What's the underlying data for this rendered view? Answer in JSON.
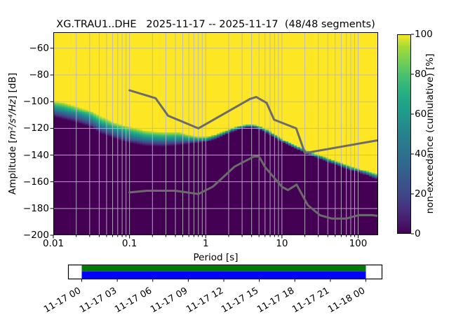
{
  "title": "XG.TRAU1..DHE   2025-11-17 -- 2025-11-17  (48/48 segments)",
  "station_id": "XG.TRAU1..DHE",
  "date_range": "2025-11-17 -- 2025-11-17",
  "segments_label": "48/48 segments",
  "axes": {
    "xlabel": "Period [s]",
    "ylabel_prefix": "Amplitude [",
    "ylabel_math": "m²/s⁴/Hz",
    "ylabel_suffix": "] [dB]",
    "x_tick_labels": [
      "0.01",
      "0.1",
      "1",
      "10",
      "100"
    ],
    "x_tick_values": [
      0.01,
      0.1,
      1,
      10,
      100
    ],
    "y_tick_labels": [
      "−200",
      "−180",
      "−160",
      "−140",
      "−120",
      "−100",
      "−80",
      "−60"
    ],
    "y_tick_values": [
      -200,
      -180,
      -160,
      -140,
      -120,
      -100,
      -80,
      -60
    ],
    "xscale": "log"
  },
  "colorbar": {
    "label": "non-exceedance (cumulative) [%]",
    "tick_labels": [
      "0",
      "20",
      "40",
      "60",
      "80",
      "100"
    ],
    "tick_values": [
      0,
      20,
      40,
      60,
      80,
      100
    ],
    "range": [
      0,
      100
    ],
    "colormap": "viridis"
  },
  "timeline": {
    "tick_labels": [
      "11-17 00",
      "11-17 03",
      "11-17 06",
      "11-17 09",
      "11-17 12",
      "11-17 15",
      "11-17 18",
      "11-17 21",
      "11-18 00"
    ],
    "coverage_top_color": "#007a00",
    "coverage_bottom_color": "#0000ff",
    "box_fill": "#ffffff",
    "box_border": "#000000"
  },
  "colors": {
    "grid": "#b8b6c2",
    "noise_model": "#6b6b6b",
    "axis": "#000000",
    "cmap_low": "#440154",
    "cmap_high": "#fde725"
  },
  "chart_data": {
    "type": "heatmap",
    "title": "XG.TRAU1..DHE   2025-11-17 -- 2025-11-17  (48/48 segments)",
    "xlabel": "Period [s]",
    "ylabel": "Amplitude [m²/s⁴/Hz] [dB]",
    "zlabel": "non-exceedance (cumulative) [%]",
    "x_range": [
      0.01,
      183
    ],
    "y_range": [
      -200,
      -48
    ],
    "z_range": [
      0,
      100
    ],
    "xscale": "log",
    "grid": true,
    "period_step_octaves": 0.125,
    "db_bin_width": 1.0,
    "cumulative_50pct_contour": {
      "periods_s": [
        0.01,
        0.014,
        0.02,
        0.03,
        0.042,
        0.06,
        0.1,
        0.16,
        0.28,
        0.45,
        0.6,
        0.8,
        1.0,
        1.3,
        1.7,
        2.2,
        2.8,
        3.5,
        4.3,
        5.0,
        6.0,
        7.5,
        9.0,
        11.0,
        14.0,
        18.0,
        23.0,
        30.0,
        40.0,
        55.0,
        75.0,
        100.0,
        140.0,
        183.0
      ],
      "db": [
        -105.5,
        -107.0,
        -109.5,
        -112.5,
        -117.5,
        -121.0,
        -125.0,
        -127.5,
        -128.3,
        -127.8,
        -128.3,
        -128.6,
        -128.2,
        -126.5,
        -124.0,
        -121.5,
        -119.3,
        -118.2,
        -118.3,
        -119.5,
        -121.5,
        -124.8,
        -127.5,
        -130.3,
        -133.2,
        -136.0,
        -138.6,
        -141.2,
        -143.8,
        -146.6,
        -149.3,
        -151.5,
        -154.3,
        -156.5
      ],
      "transition_width_db": [
        12,
        12.5,
        12,
        12,
        13,
        12,
        12.5,
        11.5,
        11,
        10,
        7,
        5,
        4,
        3.5,
        3,
        3,
        2.8,
        2.8,
        2.8,
        2.8,
        2.8,
        2.8,
        2.8,
        2.8,
        2.8,
        2.8,
        2.8,
        3,
        3,
        3,
        3.2,
        3.2,
        3.5,
        4
      ]
    },
    "noise_models": {
      "nhnm": {
        "name": "Peterson NHNM",
        "periods_s": [
          0.1,
          0.22,
          0.32,
          0.8,
          3.8,
          4.6,
          6.3,
          7.9,
          15.4,
          20.0,
          183.0
        ],
        "db": [
          -91.5,
          -97.4,
          -110.5,
          -120.0,
          -98.0,
          -96.5,
          -101.0,
          -113.5,
          -120.0,
          -138.5,
          -128.9
        ]
      },
      "nlnm": {
        "name": "Peterson NLNM",
        "periods_s": [
          0.1,
          0.17,
          0.4,
          0.8,
          1.24,
          2.4,
          4.3,
          5.0,
          6.0,
          10.0,
          12.0,
          15.6,
          21.9,
          31.6,
          45.0,
          70.0,
          101.0,
          154.0,
          183.0
        ],
        "db": [
          -168.0,
          -166.7,
          -166.7,
          -169.2,
          -163.7,
          -148.6,
          -141.1,
          -141.1,
          -149.0,
          -163.8,
          -166.2,
          -162.1,
          -177.5,
          -185.0,
          -187.5,
          -187.5,
          -185.0,
          -185.0,
          -185.6
        ]
      }
    },
    "viridis_stops": [
      [
        0.0,
        68,
        1,
        84
      ],
      [
        0.0625,
        72,
        26,
        108
      ],
      [
        0.125,
        71,
        47,
        125
      ],
      [
        0.1875,
        65,
        68,
        135
      ],
      [
        0.25,
        59,
        82,
        139
      ],
      [
        0.3125,
        52,
        96,
        141
      ],
      [
        0.375,
        47,
        108,
        142
      ],
      [
        0.4375,
        42,
        120,
        142
      ],
      [
        0.5,
        38,
        130,
        142
      ],
      [
        0.5625,
        33,
        145,
        140
      ],
      [
        0.625,
        31,
        158,
        137
      ],
      [
        0.6875,
        35,
        171,
        132
      ],
      [
        0.75,
        53,
        183,
        121
      ],
      [
        0.8125,
        84,
        197,
        104
      ],
      [
        0.875,
        122,
        209,
        81
      ],
      [
        0.9375,
        165,
        219,
        54
      ],
      [
        1.0,
        253,
        231,
        37
      ]
    ],
    "coverage_bar": {
      "start_label": "11-17 00",
      "end_label": "11-18 00",
      "tick_interval_hours": 3
    }
  }
}
